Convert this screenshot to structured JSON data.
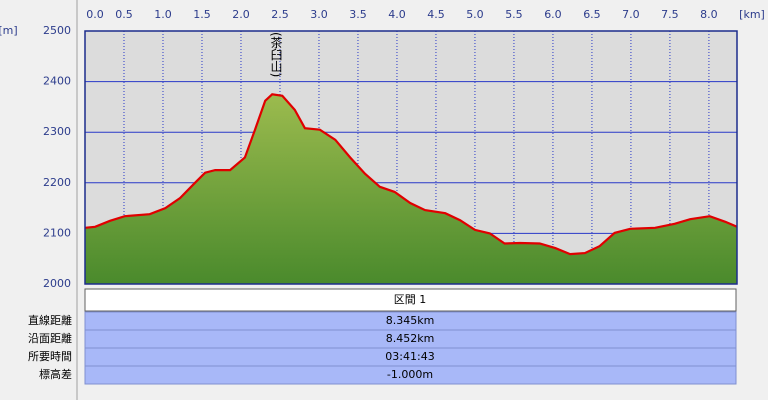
{
  "chart_data": {
    "type": "area",
    "x_unit": "[km]",
    "y_unit": "[m]",
    "annotation": "(茶臼山)",
    "x": [
      0,
      0.13,
      0.32,
      0.51,
      0.83,
      1.03,
      1.22,
      1.41,
      1.54,
      1.67,
      1.86,
      2.05,
      2.18,
      2.31,
      2.4,
      2.53,
      2.69,
      2.82,
      3.01,
      3.21,
      3.4,
      3.59,
      3.78,
      3.97,
      4.17,
      4.36,
      4.62,
      4.81,
      5.0,
      5.19,
      5.38,
      5.58,
      5.83,
      6.03,
      6.22,
      6.41,
      6.6,
      6.79,
      6.99,
      7.31,
      7.56,
      7.76,
      8.01,
      8.21,
      8.36
    ],
    "values": [
      2111,
      2113,
      2125,
      2134,
      2138,
      2150,
      2170,
      2200,
      2220,
      2225,
      2225,
      2250,
      2305,
      2362,
      2375,
      2372,
      2344,
      2308,
      2305,
      2285,
      2250,
      2218,
      2192,
      2182,
      2160,
      2146,
      2140,
      2126,
      2107,
      2100,
      2080,
      2081,
      2080,
      2071,
      2059,
      2061,
      2075,
      2101,
      2109,
      2111,
      2119,
      2128,
      2134,
      2123,
      2113
    ],
    "color": "#e00000",
    "fill_top": "#9cbb4e",
    "fill_bottom": "#4a8a2c",
    "xlim": [
      0,
      8.36
    ],
    "ylim": [
      2000,
      2500
    ],
    "xticks": [
      {
        "value": 0,
        "label": "0.0"
      },
      0.5,
      {
        "value": 1,
        "label": "1.0"
      },
      1.5,
      {
        "value": 2,
        "label": "2.0"
      },
      2.5,
      {
        "value": 3,
        "label": "3.0"
      },
      3.5,
      {
        "value": 4,
        "label": "4.0"
      },
      4.5,
      {
        "value": 5,
        "label": "5.0"
      },
      5.5,
      {
        "value": 6,
        "label": "6.0"
      },
      6.5,
      {
        "value": 7,
        "label": "7.0"
      },
      7.5,
      {
        "value": 8,
        "label": "8.0"
      }
    ],
    "yticks": [
      2000,
      2100,
      2200,
      2300,
      2400,
      2500
    ],
    "grid": true
  },
  "table": {
    "header": "区間 1",
    "rows": [
      [
        "直線距離",
        "8.345km"
      ],
      [
        "沿面距離",
        "8.452km"
      ],
      [
        "所要時間",
        "03:41:43"
      ],
      [
        "標高差",
        "-1.000m"
      ]
    ]
  }
}
